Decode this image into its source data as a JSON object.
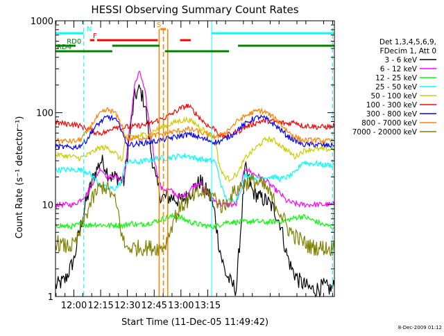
{
  "chart_data": {
    "type": "line",
    "title": "HESSI Observing Summary Count Rates",
    "xlabel": "Start Time (11-Dec-05 11:49:42)",
    "ylabel": "Count Rate (s⁻¹ detector⁻¹)",
    "x_unit": "minutes of day (UT)",
    "xlim": [
      709.7,
      866.0
    ],
    "ylim": [
      1,
      1000
    ],
    "yscale": "log",
    "grid": false,
    "x_ticks": [
      {
        "value": 720,
        "label": "12:00"
      },
      {
        "value": 735,
        "label": "12:15"
      },
      {
        "value": 750,
        "label": "12:30"
      },
      {
        "value": 765,
        "label": "12:45"
      },
      {
        "value": 780,
        "label": "13:00"
      },
      {
        "value": 795,
        "label": "13:15"
      }
    ],
    "y_ticks": [
      {
        "value": 1,
        "label": "1"
      },
      {
        "value": 10,
        "label": "10"
      },
      {
        "value": 100,
        "label": "100"
      },
      {
        "value": 1000,
        "label": "1000"
      }
    ],
    "legend": {
      "placement": "right",
      "header": [
        "Det 1,3,4,5,6,9,",
        "FDecim 1, Att 0"
      ]
    },
    "series": [
      {
        "name": "3 - 6 keV",
        "color": "#000000",
        "x": [
          709.7,
          715,
          720,
          723,
          727,
          731,
          735,
          737,
          739,
          741,
          744,
          748,
          751,
          754,
          757,
          760,
          763,
          766,
          769,
          775,
          779,
          783,
          787,
          791,
          793,
          796,
          799,
          801,
          803,
          805,
          808,
          811,
          816,
          820,
          824,
          828,
          832,
          836,
          839,
          842,
          846,
          850,
          853,
          856,
          860,
          864,
          866
        ],
        "y": [
          1.3,
          1.5,
          2.5,
          5,
          11,
          20,
          30,
          28,
          22,
          20,
          20,
          18,
          50,
          150,
          180,
          120,
          40,
          18,
          12,
          12,
          11,
          12,
          15,
          18,
          15,
          13,
          8,
          4,
          2.5,
          1.8,
          1.4,
          1.2,
          25,
          14,
          12,
          11,
          9,
          6,
          3,
          2,
          1.5,
          1.3,
          1.2,
          1.2,
          1.3,
          1.2,
          1.3
        ]
      },
      {
        "name": "6 - 12 keV",
        "color": "#ff00ff",
        "x": [
          709.7,
          715,
          720,
          723,
          727,
          731,
          735,
          737,
          739,
          741,
          744,
          748,
          751,
          754,
          757,
          760,
          763,
          766,
          769,
          775,
          779,
          783,
          787,
          791,
          793,
          796,
          799,
          801,
          803,
          805,
          808,
          811,
          816,
          820,
          824,
          828,
          832,
          836,
          839,
          842,
          846,
          850,
          853,
          856,
          860,
          864,
          866
        ],
        "y": [
          10,
          10,
          10,
          11,
          13,
          18,
          25,
          22,
          20,
          20,
          20,
          18,
          60,
          200,
          280,
          160,
          60,
          25,
          15,
          14,
          12,
          13,
          16,
          18,
          14,
          13,
          11,
          10.5,
          10,
          10,
          10,
          10,
          25,
          22,
          20,
          18,
          15,
          13,
          11,
          10.5,
          10,
          10,
          10,
          10,
          10,
          10,
          10
        ]
      },
      {
        "name": "12 - 25 keV",
        "color": "#00ff00",
        "x": [
          709.7,
          715,
          720,
          724,
          728,
          732,
          736,
          740,
          744,
          748,
          752,
          756,
          760,
          764,
          768,
          772,
          776,
          780,
          784,
          788,
          792,
          796,
          800,
          804,
          808,
          812,
          816,
          820,
          824,
          828,
          832,
          836,
          840,
          844,
          848,
          852,
          856,
          860,
          864,
          866
        ],
        "y": [
          6,
          5.8,
          5.8,
          6.2,
          6,
          6.1,
          6,
          5.9,
          6,
          5.9,
          6.3,
          6,
          6.2,
          6.4,
          6.8,
          7.2,
          7.5,
          7.2,
          6.6,
          6.2,
          6,
          5.8,
          5.8,
          6.4,
          6.5,
          6.4,
          6.5,
          6.6,
          6.5,
          6.4,
          6.5,
          6.6,
          6.8,
          7.2,
          7.5,
          7,
          6.5,
          6,
          5.8,
          5.6
        ]
      },
      {
        "name": "25 - 50 keV",
        "color": "#00ffff",
        "x": [
          709.7,
          715,
          720,
          723,
          727,
          731,
          735,
          739,
          743,
          745,
          747,
          749,
          752,
          756,
          760,
          764,
          768,
          772,
          776,
          780,
          784,
          788,
          792,
          796,
          799,
          801,
          803,
          805,
          807,
          809,
          812,
          816,
          820,
          824,
          828,
          832,
          836,
          840,
          844,
          848,
          852,
          856,
          860,
          864,
          866
        ],
        "y": [
          24,
          24,
          24,
          24,
          23,
          20,
          16,
          15,
          15,
          16,
          18,
          29,
          29,
          29,
          30,
          31,
          32,
          32,
          33,
          34,
          34,
          32,
          31,
          30,
          30,
          22,
          15,
          12,
          11,
          11,
          12,
          21,
          20,
          19,
          20,
          20,
          19,
          20,
          22,
          29,
          28,
          28,
          27,
          27,
          27
        ]
      },
      {
        "name": "50 - 100 keV",
        "color": "#cccc00",
        "x": [
          709.7,
          715,
          720,
          723,
          727,
          731,
          735,
          739,
          743,
          745,
          747,
          749,
          752,
          756,
          760,
          764,
          768,
          772,
          776,
          780,
          784,
          788,
          792,
          796,
          799,
          801,
          803,
          805,
          807,
          809,
          812,
          816,
          820,
          824,
          828,
          832,
          836,
          840,
          844,
          848,
          852,
          856,
          860,
          864,
          866
        ],
        "y": [
          35,
          34,
          33,
          32,
          34,
          38,
          42,
          41,
          37,
          33,
          30,
          55,
          55,
          56,
          58,
          62,
          68,
          72,
          78,
          82,
          84,
          76,
          67,
          58,
          55,
          30,
          22,
          20,
          19,
          20,
          22,
          32,
          38,
          45,
          52,
          50,
          44,
          38,
          33,
          38,
          40,
          40,
          40,
          40,
          41
        ]
      },
      {
        "name": "100 - 300 keV",
        "color": "#ff0000",
        "x": [
          709.7,
          715,
          720,
          723,
          727,
          731,
          735,
          739,
          743,
          745,
          747,
          749,
          752,
          756,
          760,
          764,
          768,
          772,
          776,
          780,
          784,
          788,
          792,
          796,
          799,
          801,
          803,
          805,
          807,
          809,
          812,
          816,
          820,
          824,
          828,
          832,
          836,
          840,
          844,
          848,
          852,
          856,
          860,
          864,
          866
        ],
        "y": [
          78,
          76,
          75,
          72,
          68,
          62,
          60,
          62,
          72,
          70,
          68,
          70,
          70,
          72,
          74,
          78,
          84,
          90,
          100,
          112,
          120,
          100,
          82,
          70,
          67,
          60,
          55,
          56,
          58,
          60,
          62,
          70,
          75,
          80,
          82,
          80,
          78,
          76,
          80,
          72,
          72,
          70,
          70,
          70,
          71
        ]
      },
      {
        "name": "300 - 800 keV",
        "color": "#0000ff",
        "x": [
          709.7,
          715,
          720,
          723,
          727,
          731,
          735,
          739,
          743,
          745,
          747,
          749,
          752,
          756,
          760,
          764,
          768,
          772,
          776,
          780,
          784,
          788,
          792,
          796,
          799,
          801,
          803,
          805,
          807,
          809,
          812,
          816,
          820,
          824,
          828,
          832,
          836,
          840,
          844,
          848,
          852,
          856,
          860,
          864,
          866
        ],
        "y": [
          43,
          42,
          42,
          43,
          50,
          66,
          80,
          90,
          85,
          75,
          65,
          46,
          45,
          46,
          47,
          48,
          50,
          52,
          54,
          56,
          58,
          56,
          52,
          50,
          48,
          48,
          50,
          52,
          55,
          58,
          66,
          75,
          85,
          90,
          85,
          75,
          65,
          55,
          50,
          45,
          45,
          45,
          44,
          44,
          44
        ]
      },
      {
        "name": "800 - 7000 keV",
        "color": "#ff8000",
        "x": [
          709.7,
          715,
          720,
          723,
          727,
          731,
          735,
          739,
          743,
          745,
          747,
          749,
          752,
          756,
          760,
          764,
          768,
          772,
          776,
          780,
          784,
          788,
          792,
          796,
          799,
          801,
          803,
          805,
          807,
          809,
          812,
          816,
          820,
          824,
          828,
          832,
          836,
          840,
          844,
          848,
          852,
          856,
          860,
          864,
          866
        ],
        "y": [
          50,
          49,
          49,
          50,
          60,
          80,
          98,
          108,
          100,
          85,
          72,
          53,
          52,
          53,
          54,
          56,
          58,
          60,
          62,
          64,
          66,
          64,
          60,
          57,
          55,
          55,
          58,
          62,
          66,
          72,
          82,
          92,
          100,
          106,
          100,
          88,
          75,
          62,
          55,
          50,
          50,
          50,
          49,
          49,
          50
        ]
      },
      {
        "name": "7000 - 20000 keV",
        "color": "#808000",
        "x": [
          709.7,
          713,
          716,
          720,
          722,
          725,
          728,
          731,
          734,
          737,
          740,
          743,
          745,
          747,
          749,
          752,
          756,
          760,
          764,
          768,
          771,
          773,
          776,
          780,
          784,
          788,
          792,
          796,
          799,
          801,
          803,
          805,
          807,
          809,
          812,
          816,
          820,
          824,
          828,
          832,
          836,
          840,
          844,
          848,
          852,
          856,
          860,
          864,
          866
        ],
        "y": [
          4,
          3.6,
          3.5,
          3.6,
          4.2,
          6,
          9,
          12,
          15,
          16,
          14,
          11,
          8,
          4.5,
          3.4,
          3.4,
          3.4,
          3.4,
          3.4,
          3.4,
          3.6,
          4.5,
          7,
          9.5,
          11,
          12.5,
          13.5,
          13,
          12,
          10.5,
          9.5,
          10,
          11.5,
          13,
          15,
          17,
          18,
          17,
          15,
          11,
          8,
          5.5,
          4.5,
          4,
          3.5,
          3.4,
          3.4,
          3.3,
          3.4
        ]
      }
    ],
    "annotations": {
      "top_bar_labels": [
        {
          "label": "N",
          "color": "#00ffff"
        },
        {
          "label": "F",
          "color": "#ff0000"
        },
        {
          "label": "S",
          "color": "#ff8000"
        },
        {
          "label": "RD0",
          "color": "#008000"
        },
        {
          "label": "RD4",
          "color": "#008000"
        }
      ],
      "night_boundaries": [
        {
          "x": 709.7,
          "style": "solid",
          "color": "#00ffff"
        },
        {
          "x": 725.5,
          "style": "dashed",
          "color": "#00ffff"
        },
        {
          "x": 797.2,
          "style": "solid",
          "color": "#00ffff"
        },
        {
          "x": 865.0,
          "style": "dashed",
          "color": "#00ffff"
        }
      ],
      "saa_markers": [
        {
          "x": 767.8,
          "style": "solid",
          "color": "#ff8000"
        },
        {
          "x": 770.2,
          "style": "dashed",
          "color": "#ff8000"
        },
        {
          "x": 772.6,
          "style": "solid",
          "color": "#ff8000"
        }
      ]
    }
  },
  "footer": {
    "timestamp": "8-Dec-2009 01:12"
  }
}
